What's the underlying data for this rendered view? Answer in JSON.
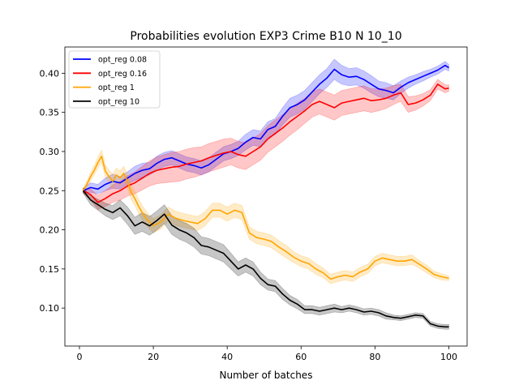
{
  "chart_data": {
    "type": "line",
    "title": "Probabilities evolution EXP3 Crime B10 N 10_10",
    "xlabel": "Number of batches",
    "ylabel": "",
    "xlim": [
      -3.95,
      104.95
    ],
    "ylim": [
      0.0515,
      0.4335
    ],
    "xticks": [
      0,
      20,
      40,
      60,
      80,
      100
    ],
    "yticks": [
      0.1,
      0.15,
      0.2,
      0.25,
      0.3,
      0.35,
      0.4
    ],
    "ytick_labels": [
      "0.10",
      "0.15",
      "0.20",
      "0.25",
      "0.30",
      "0.35",
      "0.40"
    ],
    "grid": false,
    "legend_position": "top-left",
    "series": [
      {
        "name": "opt_reg 0.08",
        "color": "#0000ff",
        "x": [
          1,
          3,
          5,
          7,
          9,
          11,
          13,
          15,
          17,
          19,
          21,
          23,
          25,
          27,
          29,
          31,
          33,
          35,
          37,
          39,
          41,
          43,
          45,
          47,
          49,
          51,
          53,
          55,
          57,
          59,
          61,
          63,
          65,
          67,
          69,
          71,
          73,
          75,
          77,
          79,
          81,
          83,
          85,
          87,
          89,
          91,
          93,
          95,
          97,
          99,
          100
        ],
        "y": [
          0.25,
          0.254,
          0.252,
          0.258,
          0.262,
          0.26,
          0.266,
          0.272,
          0.276,
          0.278,
          0.285,
          0.29,
          0.292,
          0.288,
          0.284,
          0.282,
          0.279,
          0.283,
          0.29,
          0.297,
          0.3,
          0.304,
          0.312,
          0.318,
          0.316,
          0.328,
          0.332,
          0.345,
          0.356,
          0.36,
          0.366,
          0.376,
          0.386,
          0.394,
          0.405,
          0.398,
          0.395,
          0.396,
          0.392,
          0.386,
          0.38,
          0.378,
          0.375,
          0.382,
          0.388,
          0.392,
          0.396,
          0.4,
          0.404,
          0.41,
          0.407
        ],
        "lower": [
          0.247,
          0.248,
          0.246,
          0.25,
          0.253,
          0.252,
          0.258,
          0.263,
          0.267,
          0.27,
          0.276,
          0.281,
          0.283,
          0.279,
          0.275,
          0.273,
          0.27,
          0.274,
          0.281,
          0.288,
          0.291,
          0.295,
          0.302,
          0.308,
          0.306,
          0.318,
          0.322,
          0.334,
          0.344,
          0.348,
          0.354,
          0.364,
          0.374,
          0.382,
          0.392,
          0.386,
          0.384,
          0.385,
          0.381,
          0.375,
          0.37,
          0.368,
          0.366,
          0.374,
          0.381,
          0.386,
          0.39,
          0.395,
          0.399,
          0.405,
          0.403
        ],
        "upper": [
          0.253,
          0.26,
          0.258,
          0.266,
          0.271,
          0.268,
          0.274,
          0.281,
          0.285,
          0.286,
          0.294,
          0.299,
          0.301,
          0.297,
          0.293,
          0.291,
          0.288,
          0.292,
          0.299,
          0.306,
          0.309,
          0.313,
          0.322,
          0.328,
          0.326,
          0.338,
          0.342,
          0.356,
          0.368,
          0.372,
          0.378,
          0.388,
          0.398,
          0.406,
          0.418,
          0.41,
          0.406,
          0.407,
          0.403,
          0.397,
          0.39,
          0.388,
          0.384,
          0.39,
          0.395,
          0.398,
          0.402,
          0.405,
          0.409,
          0.415,
          0.411
        ]
      },
      {
        "name": "opt_reg 0.16",
        "color": "#ff0000",
        "x": [
          1,
          3,
          5,
          7,
          9,
          11,
          13,
          15,
          17,
          19,
          21,
          23,
          25,
          27,
          29,
          31,
          33,
          35,
          37,
          39,
          41,
          43,
          45,
          47,
          49,
          51,
          53,
          55,
          57,
          59,
          61,
          63,
          65,
          67,
          69,
          71,
          73,
          75,
          77,
          79,
          81,
          83,
          85,
          87,
          89,
          91,
          93,
          95,
          97,
          99,
          100
        ],
        "y": [
          0.25,
          0.245,
          0.235,
          0.24,
          0.246,
          0.25,
          0.256,
          0.26,
          0.266,
          0.272,
          0.276,
          0.278,
          0.28,
          0.281,
          0.284,
          0.286,
          0.288,
          0.292,
          0.295,
          0.298,
          0.3,
          0.296,
          0.294,
          0.3,
          0.306,
          0.316,
          0.323,
          0.33,
          0.338,
          0.345,
          0.352,
          0.36,
          0.364,
          0.36,
          0.356,
          0.362,
          0.364,
          0.366,
          0.368,
          0.365,
          0.366,
          0.368,
          0.372,
          0.375,
          0.36,
          0.362,
          0.366,
          0.372,
          0.386,
          0.38,
          0.381
        ],
        "lower": [
          0.247,
          0.238,
          0.226,
          0.23,
          0.235,
          0.238,
          0.243,
          0.246,
          0.251,
          0.256,
          0.259,
          0.26,
          0.261,
          0.262,
          0.265,
          0.267,
          0.27,
          0.274,
          0.277,
          0.28,
          0.283,
          0.279,
          0.277,
          0.283,
          0.289,
          0.299,
          0.306,
          0.313,
          0.321,
          0.328,
          0.336,
          0.344,
          0.348,
          0.344,
          0.34,
          0.346,
          0.348,
          0.35,
          0.352,
          0.35,
          0.352,
          0.355,
          0.36,
          0.364,
          0.35,
          0.353,
          0.358,
          0.365,
          0.38,
          0.375,
          0.377
        ],
        "upper": [
          0.253,
          0.252,
          0.244,
          0.25,
          0.257,
          0.262,
          0.269,
          0.274,
          0.281,
          0.288,
          0.293,
          0.296,
          0.299,
          0.3,
          0.303,
          0.305,
          0.306,
          0.31,
          0.313,
          0.316,
          0.317,
          0.313,
          0.311,
          0.317,
          0.323,
          0.333,
          0.34,
          0.347,
          0.355,
          0.362,
          0.368,
          0.376,
          0.38,
          0.376,
          0.372,
          0.378,
          0.38,
          0.382,
          0.384,
          0.38,
          0.38,
          0.381,
          0.384,
          0.386,
          0.37,
          0.371,
          0.374,
          0.379,
          0.392,
          0.385,
          0.385
        ]
      },
      {
        "name": "opt_reg 1",
        "color": "#ffa500",
        "x": [
          1,
          2,
          3,
          4,
          5,
          6,
          7,
          8,
          9,
          10,
          11,
          12,
          13,
          14,
          15,
          16,
          17,
          18,
          19,
          20,
          22,
          24,
          26,
          28,
          30,
          32,
          34,
          36,
          38,
          40,
          42,
          44,
          46,
          48,
          50,
          52,
          54,
          56,
          58,
          60,
          62,
          64,
          66,
          68,
          70,
          72,
          74,
          76,
          78,
          80,
          82,
          84,
          86,
          88,
          90,
          92,
          94,
          96,
          98,
          100
        ],
        "y": [
          0.25,
          0.258,
          0.268,
          0.276,
          0.286,
          0.294,
          0.275,
          0.268,
          0.262,
          0.27,
          0.266,
          0.272,
          0.262,
          0.248,
          0.24,
          0.23,
          0.222,
          0.215,
          0.21,
          0.205,
          0.21,
          0.22,
          0.215,
          0.212,
          0.21,
          0.208,
          0.214,
          0.225,
          0.225,
          0.22,
          0.225,
          0.222,
          0.196,
          0.19,
          0.188,
          0.185,
          0.178,
          0.172,
          0.165,
          0.16,
          0.157,
          0.15,
          0.145,
          0.137,
          0.14,
          0.142,
          0.14,
          0.146,
          0.15,
          0.16,
          0.164,
          0.162,
          0.16,
          0.16,
          0.162,
          0.156,
          0.15,
          0.143,
          0.14,
          0.138
        ],
        "lower": [
          0.247,
          0.254,
          0.263,
          0.27,
          0.279,
          0.286,
          0.267,
          0.26,
          0.253,
          0.261,
          0.257,
          0.263,
          0.253,
          0.239,
          0.231,
          0.221,
          0.213,
          0.206,
          0.201,
          0.196,
          0.201,
          0.211,
          0.206,
          0.203,
          0.201,
          0.199,
          0.205,
          0.216,
          0.216,
          0.211,
          0.216,
          0.213,
          0.188,
          0.182,
          0.18,
          0.177,
          0.17,
          0.164,
          0.158,
          0.153,
          0.15,
          0.143,
          0.139,
          0.131,
          0.134,
          0.136,
          0.134,
          0.14,
          0.144,
          0.154,
          0.158,
          0.156,
          0.154,
          0.154,
          0.156,
          0.151,
          0.145,
          0.139,
          0.136,
          0.135
        ],
        "upper": [
          0.253,
          0.262,
          0.273,
          0.282,
          0.293,
          0.302,
          0.283,
          0.276,
          0.271,
          0.279,
          0.275,
          0.281,
          0.271,
          0.257,
          0.249,
          0.239,
          0.231,
          0.224,
          0.219,
          0.214,
          0.219,
          0.229,
          0.224,
          0.221,
          0.219,
          0.217,
          0.223,
          0.234,
          0.234,
          0.229,
          0.234,
          0.231,
          0.204,
          0.198,
          0.196,
          0.193,
          0.186,
          0.18,
          0.172,
          0.167,
          0.164,
          0.157,
          0.151,
          0.143,
          0.146,
          0.148,
          0.146,
          0.152,
          0.156,
          0.166,
          0.17,
          0.168,
          0.166,
          0.166,
          0.168,
          0.161,
          0.155,
          0.147,
          0.144,
          0.141
        ]
      },
      {
        "name": "opt_reg 10",
        "color": "#000000",
        "x": [
          1,
          3,
          5,
          7,
          9,
          11,
          13,
          15,
          17,
          19,
          21,
          23,
          25,
          27,
          29,
          31,
          33,
          35,
          37,
          39,
          41,
          43,
          45,
          47,
          49,
          51,
          53,
          55,
          57,
          59,
          61,
          63,
          65,
          67,
          69,
          71,
          73,
          75,
          77,
          79,
          81,
          83,
          85,
          87,
          89,
          91,
          93,
          95,
          97,
          99,
          100
        ],
        "y": [
          0.25,
          0.238,
          0.232,
          0.226,
          0.222,
          0.228,
          0.218,
          0.205,
          0.21,
          0.205,
          0.212,
          0.22,
          0.206,
          0.2,
          0.196,
          0.19,
          0.18,
          0.178,
          0.174,
          0.17,
          0.16,
          0.15,
          0.155,
          0.15,
          0.138,
          0.13,
          0.128,
          0.118,
          0.11,
          0.105,
          0.098,
          0.098,
          0.096,
          0.098,
          0.1,
          0.098,
          0.1,
          0.098,
          0.095,
          0.096,
          0.094,
          0.09,
          0.088,
          0.087,
          0.089,
          0.091,
          0.09,
          0.08,
          0.077,
          0.076,
          0.076
        ],
        "lower": [
          0.247,
          0.232,
          0.225,
          0.218,
          0.213,
          0.218,
          0.207,
          0.194,
          0.198,
          0.193,
          0.2,
          0.208,
          0.194,
          0.188,
          0.184,
          0.178,
          0.169,
          0.167,
          0.163,
          0.159,
          0.15,
          0.141,
          0.146,
          0.141,
          0.13,
          0.123,
          0.121,
          0.111,
          0.104,
          0.099,
          0.093,
          0.093,
          0.091,
          0.093,
          0.095,
          0.094,
          0.096,
          0.094,
          0.091,
          0.092,
          0.09,
          0.086,
          0.085,
          0.084,
          0.086,
          0.088,
          0.087,
          0.077,
          0.074,
          0.073,
          0.073
        ],
        "upper": [
          0.253,
          0.244,
          0.239,
          0.234,
          0.231,
          0.238,
          0.229,
          0.216,
          0.222,
          0.217,
          0.224,
          0.232,
          0.218,
          0.212,
          0.208,
          0.202,
          0.191,
          0.189,
          0.185,
          0.181,
          0.17,
          0.159,
          0.164,
          0.159,
          0.146,
          0.137,
          0.135,
          0.125,
          0.116,
          0.111,
          0.103,
          0.103,
          0.101,
          0.103,
          0.105,
          0.102,
          0.104,
          0.102,
          0.099,
          0.1,
          0.098,
          0.094,
          0.091,
          0.09,
          0.092,
          0.094,
          0.093,
          0.083,
          0.08,
          0.079,
          0.079
        ]
      }
    ]
  }
}
